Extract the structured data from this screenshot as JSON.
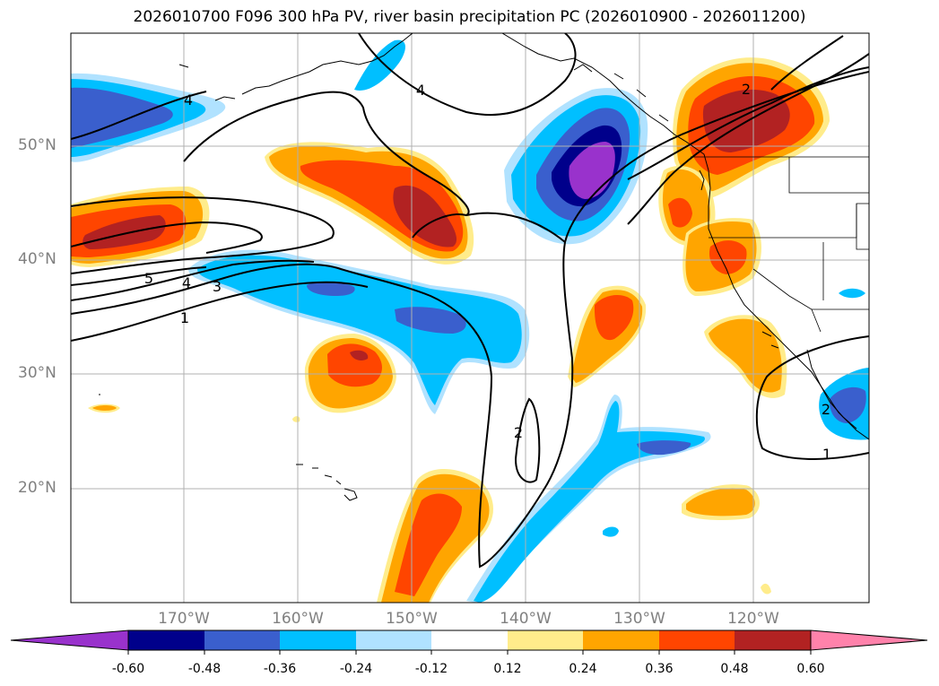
{
  "title": "2026010700 F096 300 hPa PV, river basin precipitation PC (2026010900 - 2026011200)",
  "lat_labels": [
    "50°N",
    "40°N",
    "30°N",
    "20°N"
  ],
  "lon_labels": [
    "170°W",
    "160°W",
    "150°W",
    "140°W",
    "130°W",
    "120°W"
  ],
  "contour_labels": [
    "4",
    "4",
    "2",
    "5",
    "4",
    "3",
    "1",
    "2",
    "2",
    "1"
  ],
  "colorbar": {
    "colors": [
      "#9932cc",
      "#00008b",
      "#3a5fcd",
      "#00bfff",
      "#b0e2ff",
      "#ffffff",
      "#ffec8b",
      "#ffa500",
      "#ff4500",
      "#b22222",
      "#ff82ab"
    ],
    "labels": [
      "-0.60",
      "-0.48",
      "-0.36",
      "-0.24",
      "-0.12",
      "0.12",
      "0.24",
      "0.36",
      "0.48",
      "0.60"
    ]
  }
}
